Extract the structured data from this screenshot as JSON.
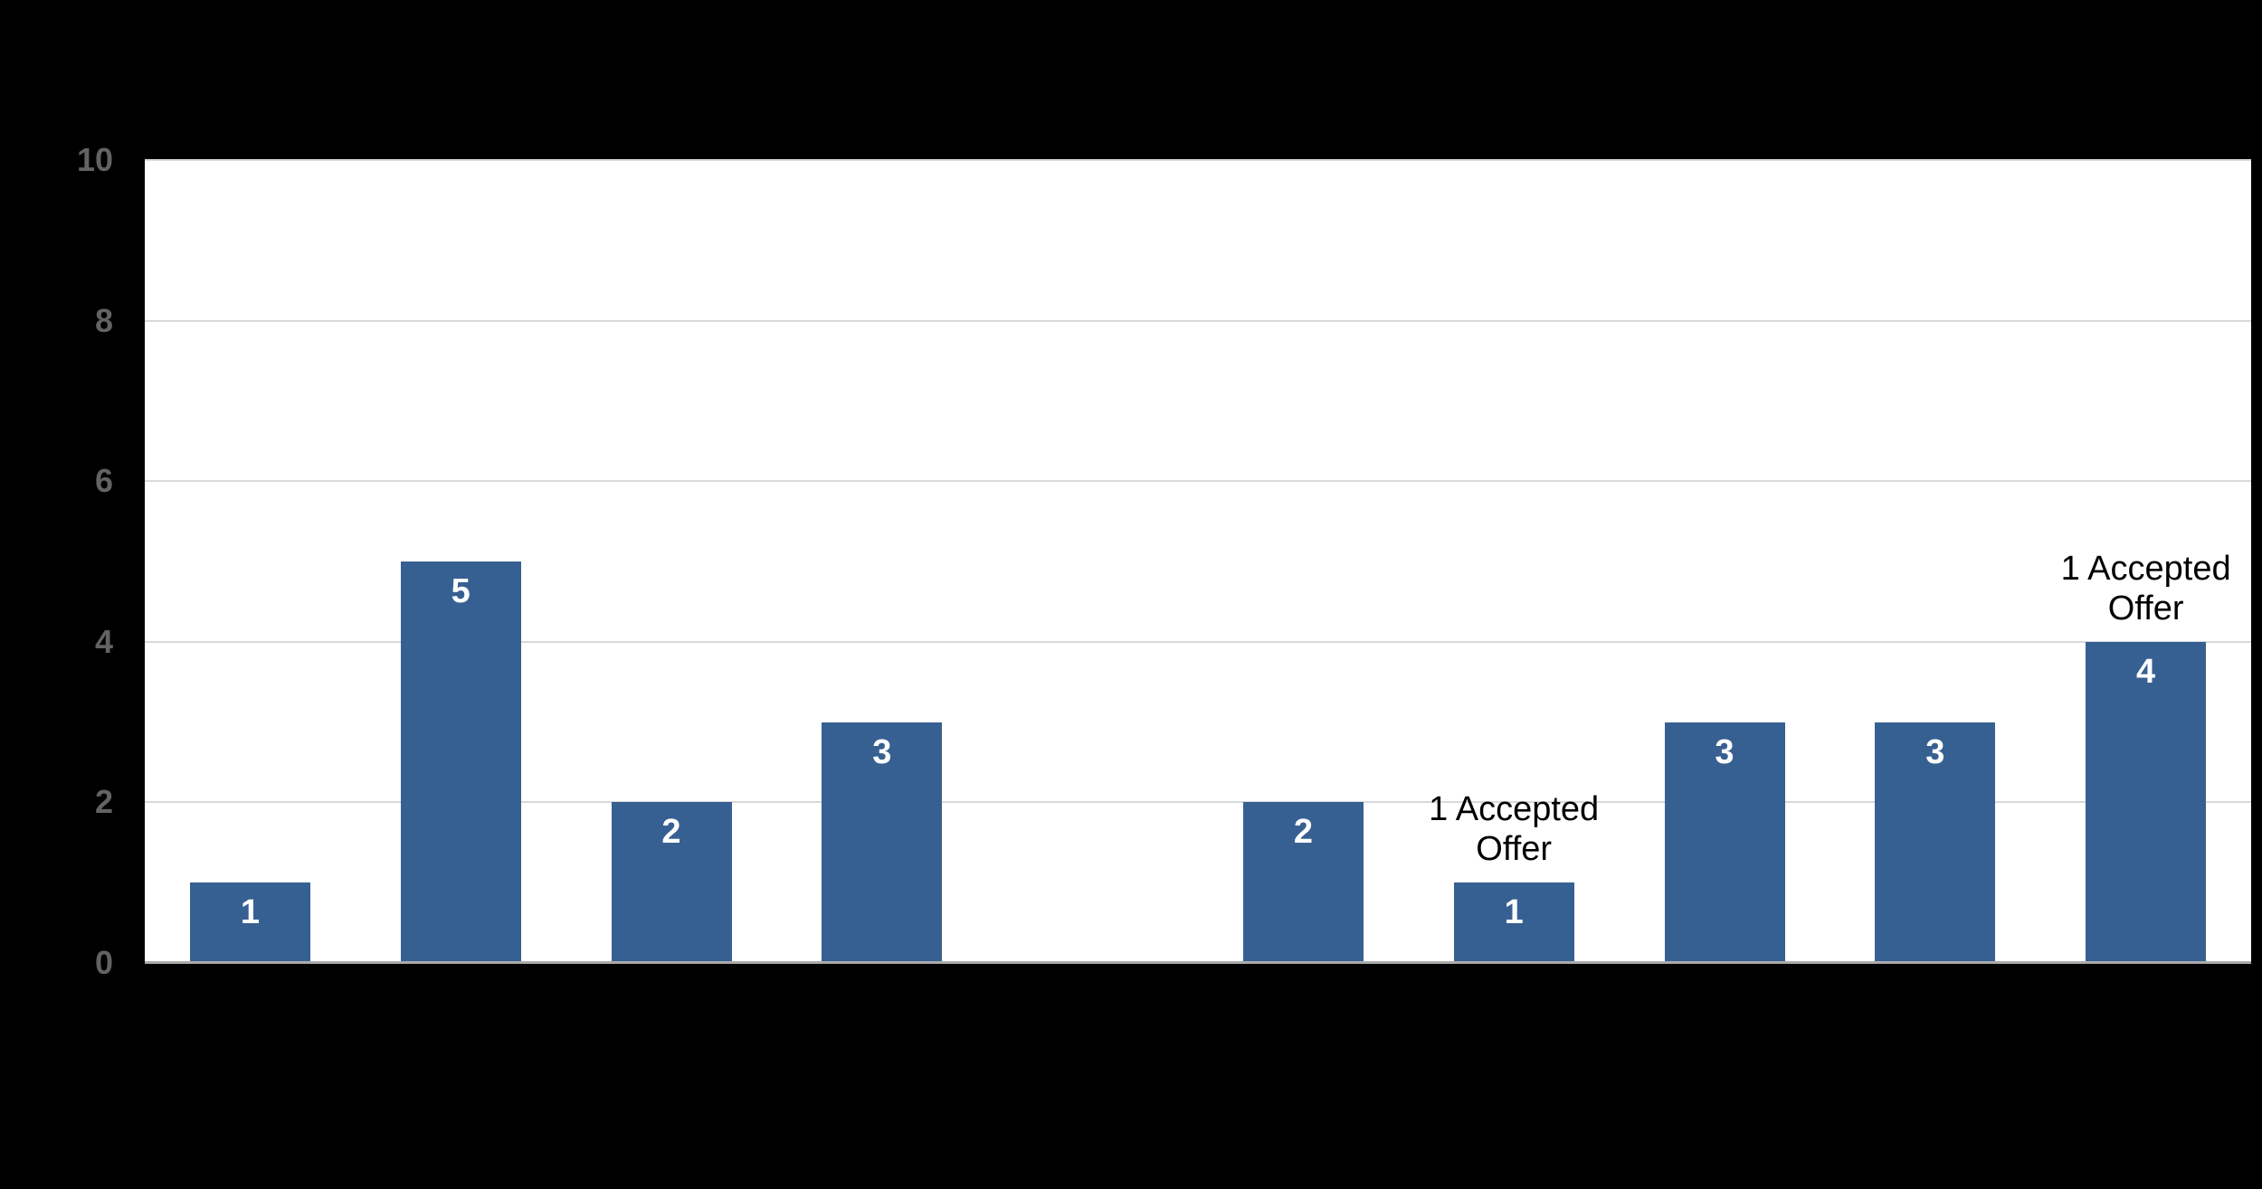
{
  "page": {
    "background_color": "#000000"
  },
  "chart_data": {
    "type": "bar",
    "title": "",
    "categories": [
      "",
      "",
      "",
      "",
      "",
      "",
      "",
      "",
      "",
      ""
    ],
    "values": [
      1,
      5,
      2,
      3,
      0,
      2,
      1,
      3,
      3,
      4
    ],
    "bar_labels": [
      "1",
      "5",
      "2",
      "3",
      "",
      "2",
      "1",
      "3",
      "3",
      "4"
    ],
    "xlabel": "",
    "ylabel": "",
    "ylim": [
      0,
      10
    ],
    "yticks": [
      "0",
      "2",
      "4",
      "6",
      "8",
      "10"
    ],
    "grid": true,
    "legend": false,
    "annotations": [
      {
        "text": "1 Accepted Offer",
        "bar_index": 6
      },
      {
        "text": "1 Accepted Offer",
        "bar_index": 9
      }
    ],
    "colors": {
      "bar_fill": "#376092",
      "bar_label": "#ffffff",
      "gridline": "#d9d9d9",
      "axis_line": "#ababab",
      "tick_label": "#636363",
      "annotation_text": "#000000",
      "plot_background": "#ffffff",
      "page_background": "#000000"
    }
  }
}
